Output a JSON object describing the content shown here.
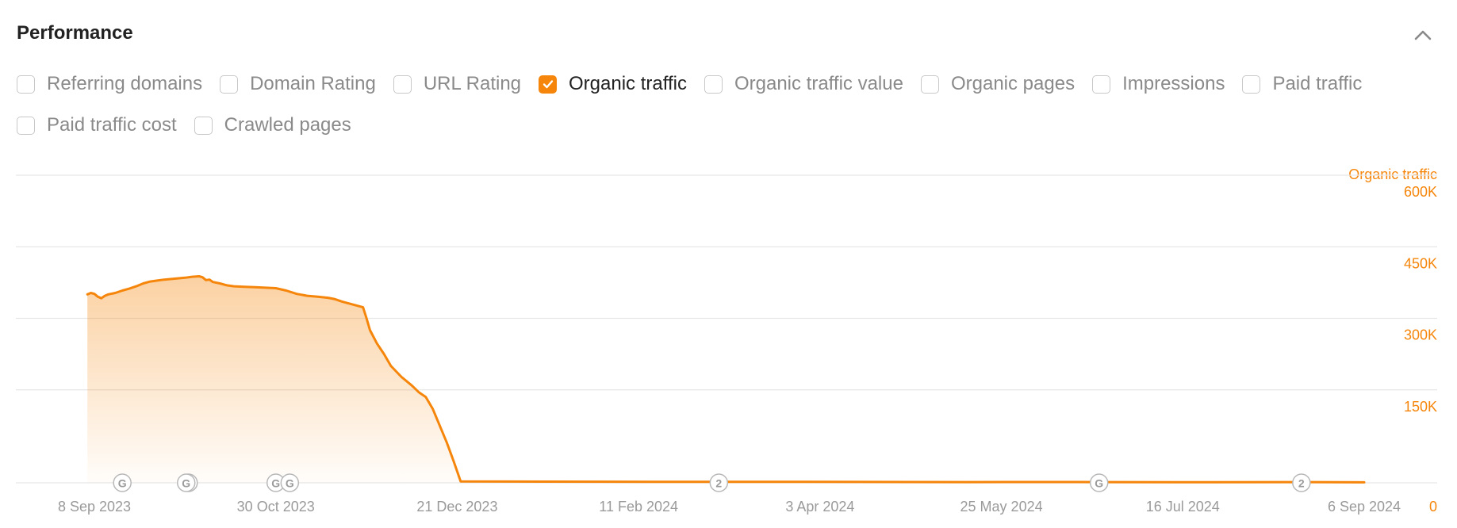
{
  "panel": {
    "title": "Performance",
    "collapse_icon": "chevron-up-icon"
  },
  "filters": [
    {
      "label": "Referring domains",
      "checked": false
    },
    {
      "label": "Domain Rating",
      "checked": false
    },
    {
      "label": "URL Rating",
      "checked": false
    },
    {
      "label": "Organic traffic",
      "checked": true
    },
    {
      "label": "Organic traffic value",
      "checked": false
    },
    {
      "label": "Organic pages",
      "checked": false
    },
    {
      "label": "Impressions",
      "checked": false
    },
    {
      "label": "Paid traffic",
      "checked": false
    },
    {
      "label": "Paid traffic cost",
      "checked": false
    },
    {
      "label": "Crawled pages",
      "checked": false
    }
  ],
  "colors": {
    "accent": "#f5860b",
    "grid": "#e6e6e6",
    "axis_text": "#9a9a9a"
  },
  "chart_data": {
    "type": "area",
    "series": [
      {
        "name": "Organic traffic",
        "points": [
          [
            "2023-09-06",
            395000
          ],
          [
            "2023-09-07",
            398000
          ],
          [
            "2023-09-08",
            396000
          ],
          [
            "2023-09-09",
            390000
          ],
          [
            "2023-09-10",
            387000
          ],
          [
            "2023-09-11",
            392000
          ],
          [
            "2023-09-12",
            395000
          ],
          [
            "2023-09-14",
            398000
          ],
          [
            "2023-09-16",
            403000
          ],
          [
            "2023-09-18",
            407000
          ],
          [
            "2023-09-20",
            412000
          ],
          [
            "2023-09-22",
            418000
          ],
          [
            "2023-09-24",
            422000
          ],
          [
            "2023-09-26",
            424000
          ],
          [
            "2023-09-28",
            426000
          ],
          [
            "2023-10-01",
            428000
          ],
          [
            "2023-10-04",
            430000
          ],
          [
            "2023-10-06",
            432000
          ],
          [
            "2023-10-08",
            433000
          ],
          [
            "2023-10-09",
            431000
          ],
          [
            "2023-10-10",
            425000
          ],
          [
            "2023-10-11",
            426000
          ],
          [
            "2023-10-12",
            421000
          ],
          [
            "2023-10-14",
            418000
          ],
          [
            "2023-10-16",
            414000
          ],
          [
            "2023-10-18",
            412000
          ],
          [
            "2023-10-21",
            411000
          ],
          [
            "2023-10-24",
            410000
          ],
          [
            "2023-10-27",
            409000
          ],
          [
            "2023-10-30",
            408000
          ],
          [
            "2023-11-02",
            403000
          ],
          [
            "2023-11-05",
            396000
          ],
          [
            "2023-11-08",
            392000
          ],
          [
            "2023-11-11",
            390000
          ],
          [
            "2023-11-14",
            388000
          ],
          [
            "2023-11-16",
            385000
          ],
          [
            "2023-11-18",
            380000
          ],
          [
            "2023-11-20",
            376000
          ],
          [
            "2023-11-22",
            372000
          ],
          [
            "2023-11-24",
            368000
          ],
          [
            "2023-11-25",
            345000
          ],
          [
            "2023-11-26",
            320000
          ],
          [
            "2023-11-28",
            292000
          ],
          [
            "2023-11-30",
            270000
          ],
          [
            "2023-12-02",
            245000
          ],
          [
            "2023-12-05",
            222000
          ],
          [
            "2023-12-08",
            204000
          ],
          [
            "2023-12-10",
            190000
          ],
          [
            "2023-12-12",
            180000
          ],
          [
            "2023-12-14",
            155000
          ],
          [
            "2023-12-16",
            120000
          ],
          [
            "2023-12-18",
            85000
          ],
          [
            "2023-12-20",
            45000
          ],
          [
            "2023-12-22",
            3000
          ],
          [
            "2024-01-15",
            2500
          ],
          [
            "2024-02-15",
            2000
          ],
          [
            "2024-03-15",
            2200
          ],
          [
            "2024-04-15",
            1800
          ],
          [
            "2024-05-15",
            1500
          ],
          [
            "2024-06-15",
            1600
          ],
          [
            "2024-07-15",
            1200
          ],
          [
            "2024-08-15",
            1500
          ],
          [
            "2024-09-06",
            1000
          ]
        ]
      }
    ],
    "x_tick_labels": [
      "8 Sep 2023",
      "30 Oct 2023",
      "21 Dec 2023",
      "11 Feb 2024",
      "3 Apr 2024",
      "25 May 2024",
      "16 Jul 2024",
      "6 Sep 2024"
    ],
    "x_tick_dates": [
      "2023-09-08",
      "2023-10-30",
      "2023-12-21",
      "2024-02-11",
      "2024-04-03",
      "2024-05-25",
      "2024-07-16",
      "2024-09-06"
    ],
    "y_axis_title": "Organic traffic",
    "y_tick_labels": [
      "0",
      "150K",
      "300K",
      "450K",
      "600K"
    ],
    "y_tick_values": [
      0,
      150000,
      300000,
      450000,
      600000
    ],
    "ylim": [
      0,
      600000
    ],
    "grid": true,
    "y_axis_position": "right",
    "annotations": [
      {
        "date": "2023-09-16",
        "label": "G"
      },
      {
        "date": "2023-10-05",
        "label": "G"
      },
      {
        "date": "2023-10-05",
        "label": "G"
      },
      {
        "date": "2023-10-30",
        "label": "G"
      },
      {
        "date": "2023-11-03",
        "label": "G"
      },
      {
        "date": "2024-03-05",
        "label": "2"
      },
      {
        "date": "2024-06-22",
        "label": "G"
      },
      {
        "date": "2024-08-19",
        "label": "2"
      }
    ]
  }
}
